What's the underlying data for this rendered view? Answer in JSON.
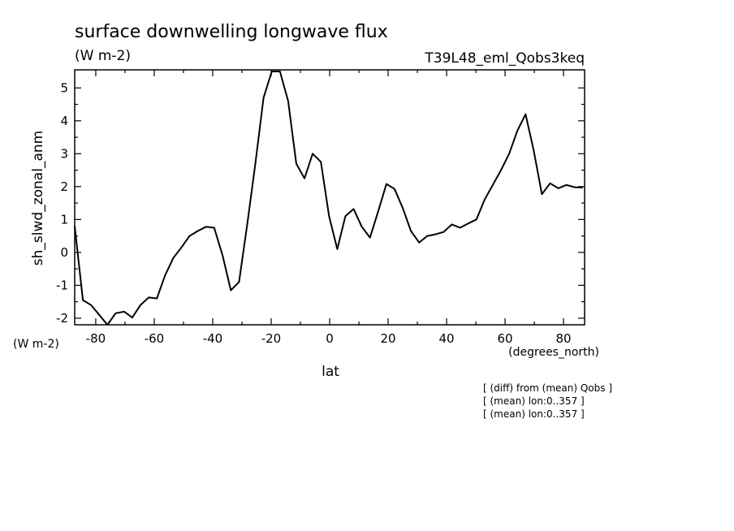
{
  "chart_data": {
    "type": "line",
    "title": "surface downwelling longwave flux",
    "units": "(W m-2)",
    "run_label": "T39L48_eml_Qobs3keq",
    "ylabel": "sh_slwd_zonal_anm",
    "y_units": "(W m-2)",
    "xlabel": "lat",
    "x_units": "(degrees_north)",
    "xlim": [
      -87.2,
      87.2
    ],
    "ylim": [
      -2.2,
      5.55
    ],
    "x_ticks": [
      -80,
      -60,
      -40,
      -20,
      0,
      20,
      40,
      60,
      80
    ],
    "x_tick_labels": [
      "-80",
      "-60",
      "-40",
      "-20",
      "0",
      "20",
      "40",
      "60",
      "80"
    ],
    "y_ticks": [
      -2,
      -1,
      0,
      1,
      2,
      3,
      4,
      5
    ],
    "y_tick_labels": [
      "-2",
      "-1",
      "0",
      "1",
      "2",
      "3",
      "4",
      "5"
    ],
    "grid": false,
    "notes": [
      "[ (diff) from (mean) Qobs ]",
      "[ (mean) lon:0..357 ]",
      "[ (mean) lon:0..357 ]"
    ],
    "series": [
      {
        "x": [
          -87.2,
          -84.4,
          -81.6,
          -78.8,
          -76.0,
          -73.2,
          -70.3,
          -67.5,
          -64.7,
          -61.9,
          -59.1,
          -56.3,
          -53.5,
          -50.7,
          -47.9,
          -45.1,
          -42.3,
          -39.5,
          -36.6,
          -33.8,
          -31.0,
          -28.2,
          -25.4,
          -22.6,
          -19.8,
          -17.0,
          -14.2,
          -11.4,
          -8.6,
          -5.8,
          -3.0,
          -0.2,
          2.6,
          5.4,
          8.2,
          11.0,
          13.8,
          16.6,
          19.4,
          22.2,
          25.0,
          27.8,
          30.6,
          33.4,
          36.2,
          39.0,
          41.8,
          44.6,
          47.4,
          50.2,
          53.0,
          55.8,
          58.6,
          61.4,
          64.2,
          67.0,
          69.8,
          72.6,
          75.4,
          78.2,
          81.0,
          83.8,
          86.6
        ],
        "y": [
          0.8,
          -1.45,
          -1.6,
          -1.9,
          -2.2,
          -1.85,
          -1.8,
          -1.98,
          -1.6,
          -1.37,
          -1.4,
          -0.7,
          -0.17,
          0.15,
          0.5,
          0.65,
          0.78,
          0.75,
          -0.1,
          -1.15,
          -0.9,
          0.85,
          2.7,
          4.7,
          5.5,
          5.5,
          4.6,
          2.7,
          2.25,
          3.0,
          2.75,
          1.1,
          0.1,
          1.1,
          1.32,
          0.78,
          0.45,
          1.25,
          2.08,
          1.93,
          1.35,
          0.65,
          0.3,
          0.5,
          0.55,
          0.62,
          0.85,
          0.75,
          0.88,
          1.0,
          1.6,
          2.05,
          2.5,
          3.0,
          3.7,
          4.2,
          3.1,
          1.77,
          2.1,
          1.95,
          2.05,
          1.98,
          1.97
        ]
      }
    ]
  }
}
